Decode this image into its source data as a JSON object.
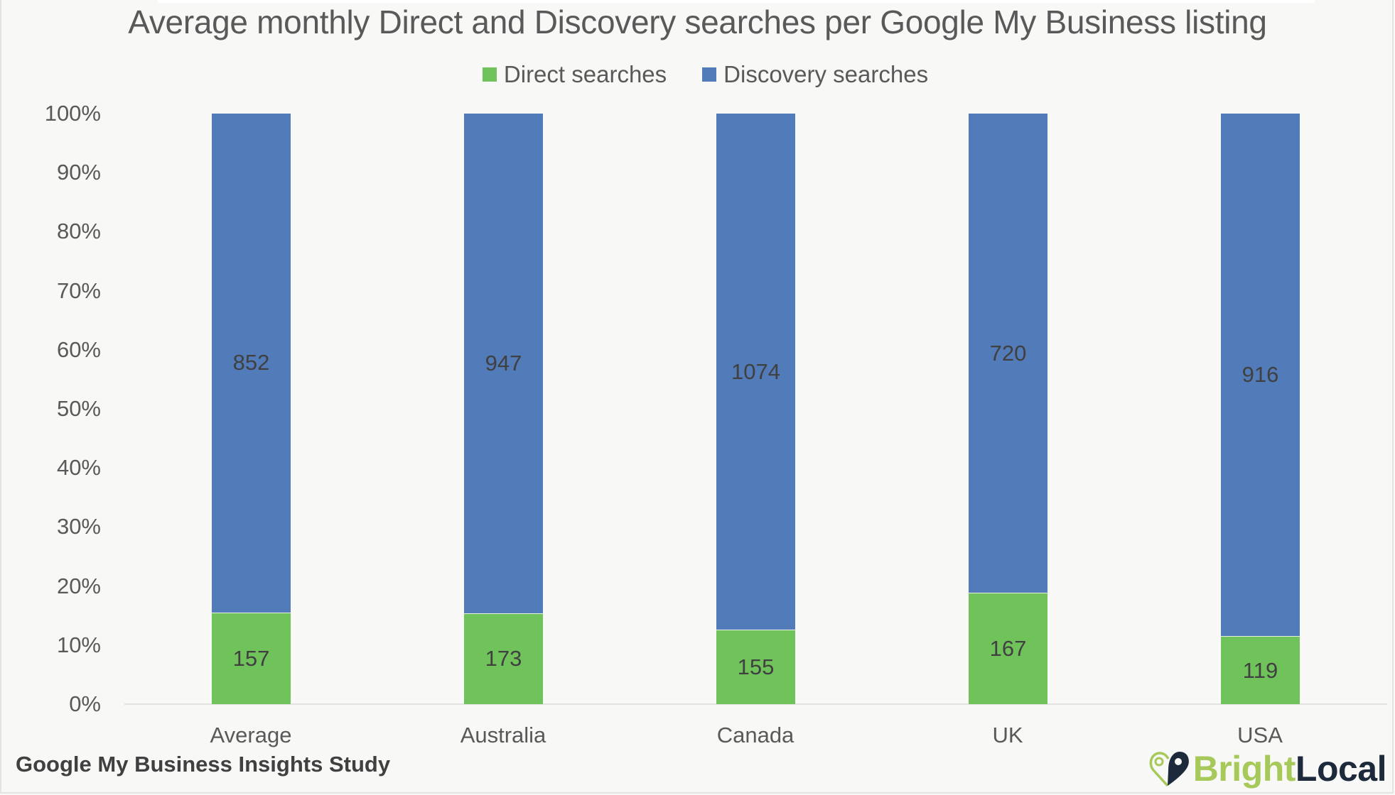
{
  "colors": {
    "background": "#f8f8f6",
    "direct": "#70c35a",
    "discovery": "#527bba",
    "text": "#595959",
    "brand_green": "#a6c95a",
    "brand_navy": "#1d2a3b"
  },
  "header": {
    "title": "Average monthly Direct and Discovery searches per Google My Business listing"
  },
  "legend": [
    {
      "label": "Direct searches",
      "color": "#70c35a"
    },
    {
      "label": "Discovery searches",
      "color": "#527bba"
    }
  ],
  "footer": {
    "source": "Google My Business Insights Study",
    "brand_part1": "Bright",
    "brand_part2": "Local",
    "brand_icon": "map-pin-heart-icon"
  },
  "chart_data": {
    "type": "bar",
    "stacked": true,
    "normalized_100_percent": true,
    "title": "Average monthly Direct and Discovery searches per Google My Business listing",
    "xlabel": "",
    "ylabel": "",
    "categories": [
      "Average",
      "Australia",
      "Canada",
      "UK",
      "USA"
    ],
    "series": [
      {
        "name": "Direct searches",
        "values": [
          157,
          173,
          155,
          167,
          119
        ]
      },
      {
        "name": "Discovery searches",
        "values": [
          852,
          947,
          1074,
          720,
          916
        ]
      }
    ],
    "ytick_labels": [
      "0%",
      "10%",
      "20%",
      "30%",
      "40%",
      "50%",
      "60%",
      "70%",
      "80%",
      "90%",
      "100%"
    ],
    "ylim": [
      0,
      100
    ],
    "grid": false,
    "legend_position": "top",
    "data_labels": true
  }
}
